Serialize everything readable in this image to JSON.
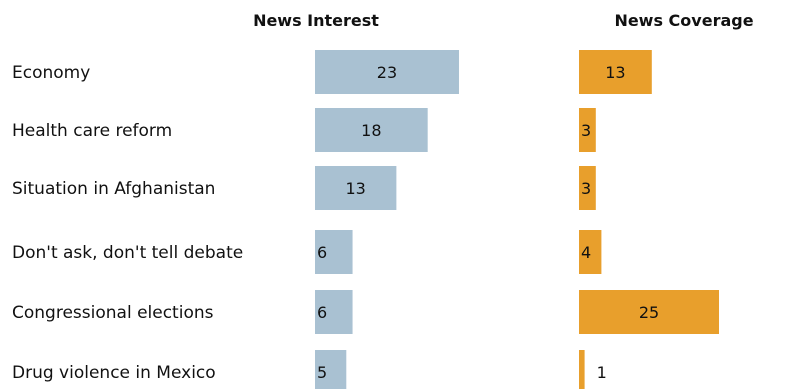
{
  "chart_data": {
    "type": "bar",
    "categories": [
      "Economy",
      "Health care reform",
      "Situation in Afghanistan",
      "Don't ask, don't tell debate",
      "Congressional elections",
      "Drug violence in Mexico"
    ],
    "series": [
      {
        "name": "News Interest",
        "values": [
          23,
          18,
          13,
          6,
          6,
          5
        ],
        "color": "#a9c1d2"
      },
      {
        "name": "News Coverage",
        "values": [
          13,
          3,
          3,
          4,
          25,
          1
        ],
        "color": "#e89f2c"
      }
    ],
    "orientation": "horizontal",
    "legend": "none",
    "grid": false
  }
}
